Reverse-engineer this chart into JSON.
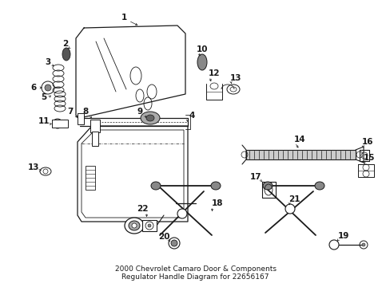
{
  "title": "2000 Chevrolet Camaro Door & Components\nRegulator Handle Diagram for 22656167",
  "bg": "#ffffff",
  "lc": "#1a1a1a",
  "title_fs": 6.5,
  "label_fs": 7.5,
  "figsize": [
    4.89,
    3.6
  ],
  "dpi": 100
}
